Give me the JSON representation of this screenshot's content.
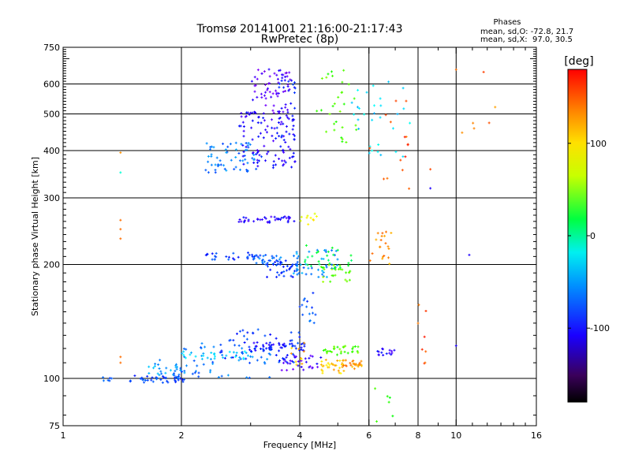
{
  "chart_data": {
    "type": "scatter",
    "title": "Tromsø 20141001 21:16:00-21:17:43",
    "subtitle": "RwPretec (8p)",
    "xlabel": "Frequency [MHz]",
    "ylabel": "Stationary phase Virtual Height [km]",
    "x_scale": "log",
    "y_scale": "log",
    "xlim": [
      1,
      16
    ],
    "ylim": [
      75,
      750
    ],
    "x_ticks": [
      {
        "value": 1,
        "label": "1"
      },
      {
        "value": 2,
        "label": "2"
      },
      {
        "value": 4,
        "label": "4"
      },
      {
        "value": 6,
        "label": "6"
      },
      {
        "value": 8,
        "label": "8"
      },
      {
        "value": 10,
        "label": "10"
      },
      {
        "value": 16,
        "label": "16"
      }
    ],
    "y_ticks": [
      {
        "value": 75,
        "label": "75"
      },
      {
        "value": 100,
        "label": "100"
      },
      {
        "value": 200,
        "label": "200"
      },
      {
        "value": 300,
        "label": "300"
      },
      {
        "value": 400,
        "label": "400"
      },
      {
        "value": 500,
        "label": "500"
      },
      {
        "value": 600,
        "label": "600"
      },
      {
        "value": 750,
        "label": "750"
      }
    ],
    "grid_x": [
      2,
      4,
      6,
      8,
      10
    ],
    "grid_y": [
      100,
      200,
      300,
      400,
      500,
      600
    ],
    "grid": true,
    "stats_header": "Phases",
    "stats_lines": [
      "mean, sd,O: -72.8, 21.7",
      "mean, sd,X:  97.0, 30.5"
    ],
    "colorbar": {
      "label": "[deg]",
      "range": [
        -180,
        180
      ],
      "ticks": [
        {
          "value": 100,
          "label": "100"
        },
        {
          "value": 0,
          "label": "0"
        },
        {
          "value": -100,
          "label": "-100"
        }
      ]
    },
    "point_groups": [
      {
        "x_range": [
          1.25,
          1.33
        ],
        "y_range": [
          98,
          101
        ],
        "phase": -80,
        "count": 6
      },
      {
        "x_range": [
          1.48,
          2.05
        ],
        "y_range": [
          97,
          102
        ],
        "phase": -85,
        "count": 40
      },
      {
        "x_range": [
          1.6,
          2.1
        ],
        "y_range": [
          102,
          112
        ],
        "phase": -60,
        "count": 25
      },
      {
        "x_range": [
          1.9,
          3.4
        ],
        "y_range": [
          100,
          125
        ],
        "phase": -70,
        "count": 60
      },
      {
        "x_range": [
          2.0,
          3.0
        ],
        "y_range": [
          112,
          118
        ],
        "phase": -45,
        "count": 30
      },
      {
        "x_range": [
          2.5,
          4.0
        ],
        "y_range": [
          110,
          135
        ],
        "phase": -90,
        "count": 50
      },
      {
        "x_range": [
          3.0,
          4.2
        ],
        "y_range": [
          118,
          125
        ],
        "phase": -100,
        "count": 40
      },
      {
        "x_range": [
          3.6,
          4.6
        ],
        "y_range": [
          105,
          116
        ],
        "phase": -120,
        "count": 30
      },
      {
        "x_range": [
          3.8,
          4.2
        ],
        "y_range": [
          105,
          125
        ],
        "phase": 130,
        "count": 10
      },
      {
        "x_range": [
          4.5,
          5.2
        ],
        "y_range": [
          103,
          112
        ],
        "phase": 125,
        "count": 30
      },
      {
        "x_range": [
          5.1,
          5.8
        ],
        "y_range": [
          106,
          112
        ],
        "phase": 140,
        "count": 25
      },
      {
        "x_range": [
          4.6,
          5.7
        ],
        "y_range": [
          115,
          122
        ],
        "phase": 60,
        "count": 30
      },
      {
        "x_range": [
          6.3,
          7.0
        ],
        "y_range": [
          115,
          120
        ],
        "phase": -110,
        "count": 15
      },
      {
        "x_range": [
          4.0,
          4.4
        ],
        "y_range": [
          140,
          170
        ],
        "phase": -80,
        "count": 15
      },
      {
        "x_range": [
          2.3,
          3.1
        ],
        "y_range": [
          206,
          215
        ],
        "phase": -85,
        "count": 25
      },
      {
        "x_range": [
          3.0,
          3.6
        ],
        "y_range": [
          200,
          212
        ],
        "phase": -75,
        "count": 30
      },
      {
        "x_range": [
          3.3,
          4.1
        ],
        "y_range": [
          185,
          205
        ],
        "phase": -90,
        "count": 40
      },
      {
        "x_range": [
          3.8,
          5.0
        ],
        "y_range": [
          185,
          220
        ],
        "phase": -60,
        "count": 45
      },
      {
        "x_range": [
          4.5,
          5.4
        ],
        "y_range": [
          180,
          200
        ],
        "phase": 70,
        "count": 25
      },
      {
        "x_range": [
          4.1,
          5.5
        ],
        "y_range": [
          195,
          225
        ],
        "phase": 20,
        "count": 25
      },
      {
        "x_range": [
          6.0,
          6.9
        ],
        "y_range": [
          200,
          245
        ],
        "phase": 140,
        "count": 20
      },
      {
        "x_range": [
          2.8,
          3.9
        ],
        "y_range": [
          258,
          268
        ],
        "phase": -110,
        "count": 40
      },
      {
        "x_range": [
          3.8,
          4.5
        ],
        "y_range": [
          255,
          275
        ],
        "phase": 110,
        "count": 10
      },
      {
        "x_range": [
          2.3,
          3.2
        ],
        "y_range": [
          350,
          420
        ],
        "phase": -70,
        "count": 60
      },
      {
        "x_range": [
          2.8,
          3.9
        ],
        "y_range": [
          360,
          510
        ],
        "phase": -110,
        "count": 110
      },
      {
        "x_range": [
          3.0,
          3.8
        ],
        "y_range": [
          500,
          660
        ],
        "phase": -125,
        "count": 60
      },
      {
        "x_range": [
          3.5,
          3.9
        ],
        "y_range": [
          420,
          620
        ],
        "phase": -95,
        "count": 25
      },
      {
        "x_range": [
          4.4,
          5.6
        ],
        "y_range": [
          420,
          660
        ],
        "phase": 60,
        "count": 30
      },
      {
        "x_range": [
          5.3,
          7.7
        ],
        "y_range": [
          380,
          610
        ],
        "phase": -40,
        "count": 30
      },
      {
        "x_range": [
          6.0,
          8.0
        ],
        "y_range": [
          300,
          560
        ],
        "phase": 160,
        "count": 15
      },
      {
        "x_range": [
          9.8,
          12.8
        ],
        "y_range": [
          400,
          670
        ],
        "phase": 150,
        "count": 6
      },
      {
        "x_range": [
          6.2,
          7.1
        ],
        "y_range": [
          75,
          96
        ],
        "phase": 50,
        "count": 6
      },
      {
        "x_range": [
          8.0,
          8.4
        ],
        "y_range": [
          108,
          160
        ],
        "phase": 160,
        "count": 8
      }
    ],
    "isolated_points": [
      {
        "x": 1.4,
        "y": 395,
        "phase": 140
      },
      {
        "x": 1.4,
        "y": 350,
        "phase": -20
      },
      {
        "x": 1.4,
        "y": 262,
        "phase": 150
      },
      {
        "x": 1.4,
        "y": 248,
        "phase": 150
      },
      {
        "x": 1.4,
        "y": 234,
        "phase": 150
      },
      {
        "x": 1.4,
        "y": 114,
        "phase": 150
      },
      {
        "x": 1.4,
        "y": 110,
        "phase": 150
      },
      {
        "x": 8.6,
        "y": 318,
        "phase": -110
      },
      {
        "x": 8.6,
        "y": 357,
        "phase": 160
      },
      {
        "x": 10.0,
        "y": 122,
        "phase": -110
      },
      {
        "x": 10.8,
        "y": 212,
        "phase": -110
      },
      {
        "x": 10.0,
        "y": 655,
        "phase": 150
      }
    ]
  }
}
